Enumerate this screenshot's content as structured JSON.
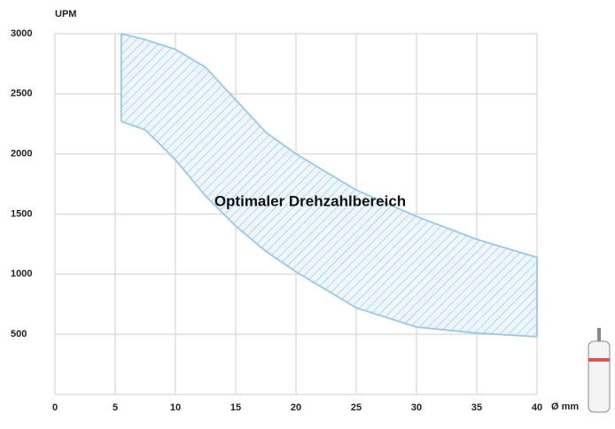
{
  "chart_data": {
    "type": "band",
    "y_label": "UPM",
    "x_label": "Ø mm",
    "annotation": "Optimaler Drehzahlbereich",
    "x": [
      5.5,
      7.5,
      10,
      12.5,
      15,
      17.5,
      20,
      25,
      30,
      35,
      40
    ],
    "series": [
      {
        "color": "#9cc8e6",
        "values": [
          3000,
          2950,
          2870,
          2720,
          2450,
          2180,
          2000,
          1700,
          1480,
          1290,
          1140
        ]
      },
      {
        "color": "#9cc8e6",
        "values": [
          2270,
          2200,
          1950,
          1650,
          1400,
          1190,
          1020,
          720,
          560,
          510,
          480
        ]
      }
    ],
    "xlim": [
      0,
      40
    ],
    "xticks": [
      0,
      5,
      10,
      15,
      20,
      25,
      30,
      35,
      40
    ],
    "ylim": [
      0,
      3000
    ],
    "yticks": [
      500,
      1000,
      1500,
      2000,
      2500,
      3000
    ],
    "grid": true
  }
}
